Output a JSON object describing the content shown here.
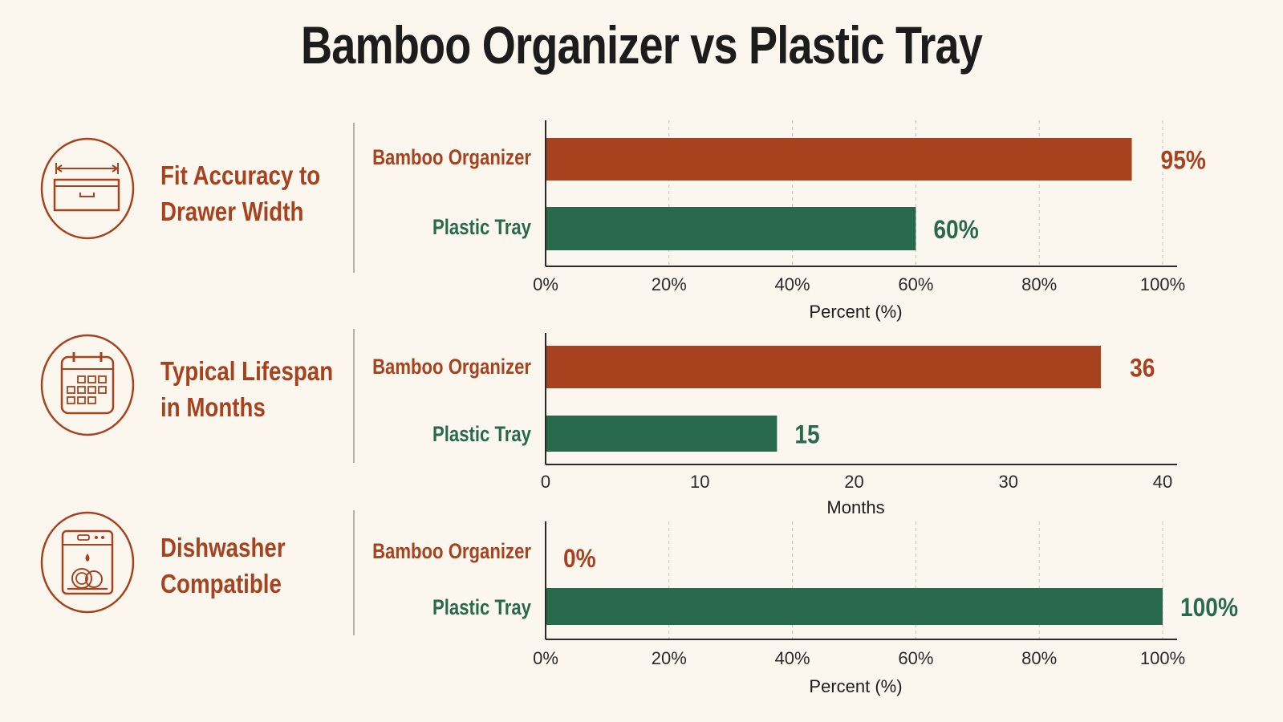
{
  "title": "Bamboo Organizer vs Plastic Tray",
  "colors": {
    "bamboo": "#a6431e",
    "plastic": "#2a6a4c",
    "axis": "#2a2a2a",
    "grid": "#c9c2b5"
  },
  "panels": [
    {
      "label_lines": [
        "Fit Accuracy to",
        "Drawer Width"
      ],
      "icon": "drawer-width-icon"
    },
    {
      "label_lines": [
        "Typical Lifespan",
        "in Months"
      ],
      "icon": "calendar-icon"
    },
    {
      "label_lines": [
        "Dishwasher",
        "Compatible"
      ],
      "icon": "dishwasher-icon"
    }
  ],
  "chart_data": [
    {
      "type": "bar",
      "orientation": "horizontal",
      "categories": [
        "Bamboo Organizer",
        "Plastic Tray"
      ],
      "values": [
        95,
        60
      ],
      "value_labels": [
        "95%",
        "60%"
      ],
      "xlabel": "Percent (%)",
      "xlim": [
        0,
        100
      ],
      "ticks": [
        0,
        20,
        40,
        60,
        80,
        100
      ],
      "tick_labels": [
        "0%",
        "20%",
        "40%",
        "60%",
        "80%",
        "100%"
      ],
      "grid": true
    },
    {
      "type": "bar",
      "orientation": "horizontal",
      "categories": [
        "Bamboo Organizer",
        "Plastic Tray"
      ],
      "values": [
        36,
        15
      ],
      "value_labels": [
        "36",
        "15"
      ],
      "xlabel": "Months",
      "xlim": [
        0,
        40
      ],
      "ticks": [
        0,
        10,
        20,
        30,
        40
      ],
      "tick_labels": [
        "0",
        "10",
        "20",
        "30",
        "40"
      ],
      "grid": false
    },
    {
      "type": "bar",
      "orientation": "horizontal",
      "categories": [
        "Bamboo Organizer",
        "Plastic Tray"
      ],
      "values": [
        0,
        100
      ],
      "value_labels": [
        "0%",
        "100%"
      ],
      "xlabel": "Percent (%)",
      "xlim": [
        0,
        100
      ],
      "ticks": [
        0,
        20,
        40,
        60,
        80,
        100
      ],
      "tick_labels": [
        "0%",
        "20%",
        "40%",
        "60%",
        "80%",
        "100%"
      ],
      "grid": true
    }
  ]
}
